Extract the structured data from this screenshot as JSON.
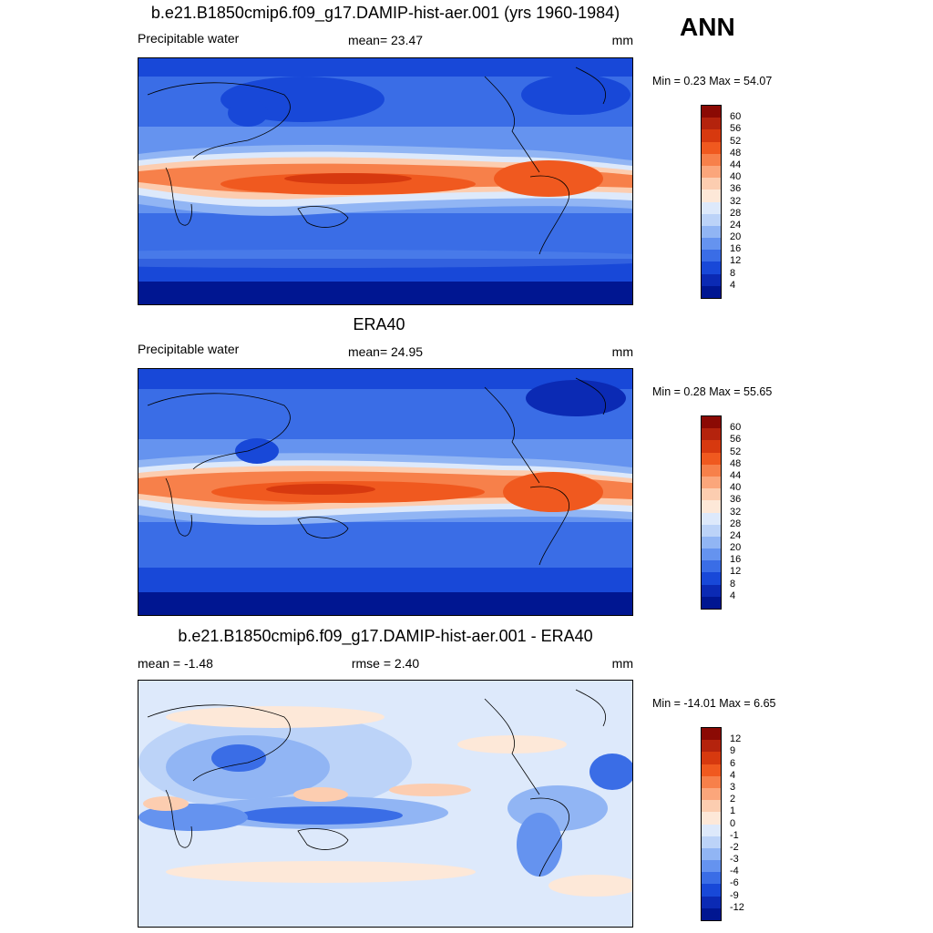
{
  "season": "ANN",
  "panels": [
    {
      "title": "b.e21.B1850cmip6.f09_g17.DAMIP-hist-aer.001 (yrs 1960-1984)",
      "left_label": "Precipitable water",
      "center_label": "mean=  23.47",
      "units": "mm",
      "minmax": "Min =   0.23 Max =  54.07",
      "colorbar": {
        "ticks": [
          "60",
          "56",
          "52",
          "48",
          "44",
          "40",
          "36",
          "32",
          "28",
          "24",
          "20",
          "16",
          "12",
          "8",
          "4"
        ],
        "colors": [
          "#8b0a04",
          "#b4230d",
          "#d7390f",
          "#f0591f",
          "#f7804a",
          "#fba67b",
          "#fccdb0",
          "#fde8d8",
          "#dde9fb",
          "#bcd3f8",
          "#91b5f4",
          "#6593ef",
          "#3a6de6",
          "#1848d8",
          "#0b2ab4",
          "#001691"
        ]
      }
    },
    {
      "title": "ERA40",
      "left_label": "Precipitable water",
      "center_label": "mean=  24.95",
      "units": "mm",
      "minmax": "Min =   0.28 Max =  55.65",
      "colorbar": {
        "ticks": [
          "60",
          "56",
          "52",
          "48",
          "44",
          "40",
          "36",
          "32",
          "28",
          "24",
          "20",
          "16",
          "12",
          "8",
          "4"
        ],
        "colors": [
          "#8b0a04",
          "#b4230d",
          "#d7390f",
          "#f0591f",
          "#f7804a",
          "#fba67b",
          "#fccdb0",
          "#fde8d8",
          "#dde9fb",
          "#bcd3f8",
          "#91b5f4",
          "#6593ef",
          "#3a6de6",
          "#1848d8",
          "#0b2ab4",
          "#001691"
        ]
      }
    },
    {
      "title": "b.e21.B1850cmip6.f09_g17.DAMIP-hist-aer.001 - ERA40",
      "left_label": "mean =  -1.48",
      "center_label": "rmse =   2.40",
      "units": "mm",
      "minmax": "Min = -14.01 Max =   6.65",
      "colorbar": {
        "ticks": [
          "12",
          "9",
          "6",
          "4",
          "3",
          "2",
          "1",
          "0",
          "-1",
          "-2",
          "-3",
          "-4",
          "-6",
          "-9",
          "-12"
        ],
        "colors": [
          "#8b0a04",
          "#b4230d",
          "#d7390f",
          "#f0591f",
          "#f7804a",
          "#fba67b",
          "#fccdb0",
          "#fde8d8",
          "#dde9fb",
          "#bcd3f8",
          "#91b5f4",
          "#6593ef",
          "#3a6de6",
          "#1848d8",
          "#0b2ab4",
          "#001691"
        ]
      }
    }
  ]
}
